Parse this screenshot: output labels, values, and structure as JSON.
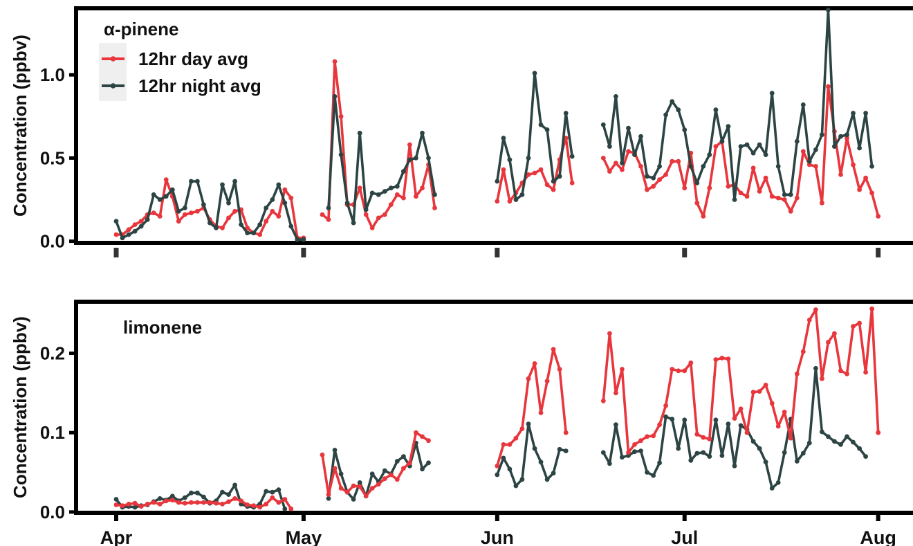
{
  "chart_data": [
    {
      "type": "line",
      "title": "",
      "annotation": "α-pinene",
      "xlabel": "",
      "ylabel": "Concentration (ppbv)",
      "x_tick_labels": [
        "Apr",
        "May",
        "Jun",
        "Jul",
        "Aug"
      ],
      "x_tick_dates": [
        "2023-04-01",
        "2023-05-01",
        "2023-06-01",
        "2023-07-01",
        "2023-08-01"
      ],
      "ylim": [
        -0.01,
        1.4
      ],
      "yticks": [
        0.0,
        0.5,
        1.0
      ],
      "y_tick_labels": [
        "0.0",
        "0.5",
        "1.0"
      ],
      "legend": "top-left",
      "grid": false,
      "series": [
        {
          "name": "12hr day avg",
          "color": "#e8363d",
          "segments": [
            {
              "start": "2023-04-01",
              "values": [
                0.04,
                0.04,
                0.07,
                0.1,
                0.12,
                0.16,
                0.17,
                0.15,
                0.37,
                0.27,
                0.12,
                0.16,
                0.17,
                0.18,
                0.2,
                0.13,
                0.09,
                0.08,
                0.14,
                0.18,
                0.19,
                0.08,
                0.05,
                0.04,
                0.12,
                0.18,
                0.15,
                0.31,
                0.26,
                0.02,
                0.02
              ]
            },
            {
              "start": "2023-05-04",
              "values": [
                0.16,
                0.13,
                1.08,
                0.75,
                0.22,
                0.22,
                0.32,
                0.16,
                0.08,
                0.14,
                0.16,
                0.22,
                0.28,
                0.26,
                0.58,
                0.27,
                0.32,
                0.46,
                0.2
              ]
            },
            {
              "start": "2023-06-01",
              "values": [
                0.24,
                0.43,
                0.24,
                0.29,
                0.35,
                0.4,
                0.41,
                0.43,
                0.34,
                0.31,
                0.49,
                0.62,
                0.35
              ]
            },
            {
              "start": "2023-06-18",
              "values": [
                0.5,
                0.42,
                0.47,
                0.43,
                0.54,
                0.53,
                0.45,
                0.31,
                0.33,
                0.37,
                0.4,
                0.48,
                0.48,
                0.32,
                0.53,
                0.23,
                0.15,
                0.32,
                0.57,
                0.6,
                0.33,
                0.34,
                0.29,
                0.27,
                0.44,
                0.3,
                0.38,
                0.27,
                0.26,
                0.25,
                0.18,
                0.26,
                0.54,
                0.46,
                0.45,
                0.23,
                0.93,
                0.66,
                0.4,
                0.62,
                0.46,
                0.31,
                0.38,
                0.29,
                0.15
              ]
            }
          ]
        },
        {
          "name": "12hr night avg",
          "color": "#2c4443",
          "segments": [
            {
              "start": "2023-04-01",
              "values": [
                0.12,
                0.02,
                0.04,
                0.06,
                0.09,
                0.13,
                0.28,
                0.25,
                0.27,
                0.31,
                0.18,
                0.2,
                0.36,
                0.36,
                0.22,
                0.11,
                0.08,
                0.34,
                0.23,
                0.36,
                0.1,
                0.05,
                0.05,
                0.1,
                0.2,
                0.25,
                0.34,
                0.23,
                0.09,
                0.01,
                0.01
              ]
            },
            {
              "start": "2023-05-05",
              "values": [
                0.2,
                0.87,
                0.52,
                0.23,
                0.11,
                0.65,
                0.19,
                0.29,
                0.28,
                0.3,
                0.32,
                0.33,
                0.42,
                0.49,
                0.5,
                0.65,
                0.5,
                0.28
              ]
            },
            {
              "start": "2023-06-01",
              "values": [
                0.36,
                0.62,
                0.49,
                0.25,
                0.28,
                0.5,
                1.01,
                0.7,
                0.67,
                0.36,
                0.39,
                0.77,
                0.51
              ]
            },
            {
              "start": "2023-06-18",
              "values": [
                0.7,
                0.57,
                0.87,
                0.47,
                0.68,
                0.52,
                0.63,
                0.39,
                0.38,
                0.45,
                0.76,
                0.84,
                0.79,
                0.67,
                0.45,
                0.35,
                0.45,
                0.52,
                0.79,
                0.6,
                0.69,
                0.25,
                0.57,
                0.58,
                0.53,
                0.58,
                0.52,
                0.89,
                0.45,
                0.28,
                0.28,
                0.6,
                0.82,
                0.48,
                0.55,
                0.64,
                1.39,
                0.57,
                0.63,
                0.64,
                0.77,
                0.56,
                0.77,
                0.45
              ]
            }
          ]
        }
      ]
    },
    {
      "type": "line",
      "title": "",
      "annotation": "limonene",
      "xlabel": "",
      "ylabel": "Concentration (ppbv)",
      "x_tick_labels": [
        "Apr",
        "May",
        "Jun",
        "Jul",
        "Aug"
      ],
      "x_tick_dates": [
        "2023-04-01",
        "2023-05-01",
        "2023-06-01",
        "2023-07-01",
        "2023-08-01"
      ],
      "ylim": [
        -0.001,
        0.265
      ],
      "yticks": [
        0.0,
        0.1,
        0.2
      ],
      "y_tick_labels": [
        "0.0",
        "0.1",
        "0.2"
      ],
      "grid": false,
      "series": [
        {
          "name": "12hr day avg",
          "color": "#e8363d",
          "segments": [
            {
              "start": "2023-04-01",
              "values": [
                0.009,
                0.008,
                0.01,
                0.011,
                0.007,
                0.01,
                0.012,
                0.01,
                0.014,
                0.015,
                0.012,
                0.011,
                0.012,
                0.012,
                0.012,
                0.012,
                0.011,
                0.01,
                0.013,
                0.017,
                0.014,
                0.009,
                0.008,
                0.006,
                0.01,
                0.018,
                0.012,
                0.016,
                0.004
              ]
            },
            {
              "start": "2023-05-04",
              "values": [
                0.072,
                0.022,
                0.055,
                0.03,
                0.025,
                0.033,
                0.032,
                0.02,
                0.03,
                0.035,
                0.042,
                0.047,
                0.041,
                0.055,
                0.062,
                0.1,
                0.095,
                0.09
              ]
            },
            {
              "start": "2023-06-01",
              "values": [
                0.058,
                0.085,
                0.085,
                0.093,
                0.105,
                0.168,
                0.187,
                0.125,
                0.165,
                0.205,
                0.18,
                0.1
              ]
            },
            {
              "start": "2023-06-18",
              "values": [
                0.14,
                0.225,
                0.15,
                0.18,
                0.075,
                0.085,
                0.09,
                0.095,
                0.096,
                0.11,
                0.134,
                0.18,
                0.178,
                0.178,
                0.188,
                0.098,
                0.094,
                0.092,
                0.192,
                0.194,
                0.193,
                0.118,
                0.13,
                0.1,
                0.151,
                0.152,
                0.16,
                0.137,
                0.108,
                0.126,
                0.093,
                0.174,
                0.202,
                0.242,
                0.255,
                0.168,
                0.214,
                0.225,
                0.178,
                0.174,
                0.234,
                0.238,
                0.176,
                0.256,
                0.1
              ]
            }
          ]
        },
        {
          "name": "12hr night avg",
          "color": "#2c4443",
          "segments": [
            {
              "start": "2023-04-01",
              "values": [
                0.016,
                0.006,
                0.007,
                0.006,
                0.008,
                0.009,
                0.013,
                0.017,
                0.015,
                0.02,
                0.014,
                0.018,
                0.024,
                0.024,
                0.019,
                0.011,
                0.014,
                0.025,
                0.022,
                0.034,
                0.01,
                0.007,
                0.006,
                0.01,
                0.026,
                0.025,
                0.028,
                0.004
              ]
            },
            {
              "start": "2023-05-05",
              "values": [
                0.017,
                0.078,
                0.048,
                0.025,
                0.016,
                0.037,
                0.02,
                0.048,
                0.038,
                0.052,
                0.048,
                0.064,
                0.07,
                0.058,
                0.087,
                0.054,
                0.062
              ]
            },
            {
              "start": "2023-06-01",
              "values": [
                0.047,
                0.068,
                0.054,
                0.033,
                0.041,
                0.111,
                0.08,
                0.063,
                0.041,
                0.049,
                0.079,
                0.077
              ]
            },
            {
              "start": "2023-06-18",
              "values": [
                0.075,
                0.061,
                0.11,
                0.069,
                0.071,
                0.076,
                0.077,
                0.05,
                0.046,
                0.062,
                0.12,
                0.117,
                0.08,
                0.116,
                0.065,
                0.074,
                0.075,
                0.07,
                0.116,
                0.071,
                0.111,
                0.058,
                0.109,
                0.104,
                0.089,
                0.08,
                0.063,
                0.03,
                0.037,
                0.075,
                0.117,
                0.064,
                0.074,
                0.087,
                0.181,
                0.101,
                0.095,
                0.089,
                0.085,
                0.095,
                0.088,
                0.08,
                0.07
              ]
            }
          ]
        }
      ]
    }
  ]
}
